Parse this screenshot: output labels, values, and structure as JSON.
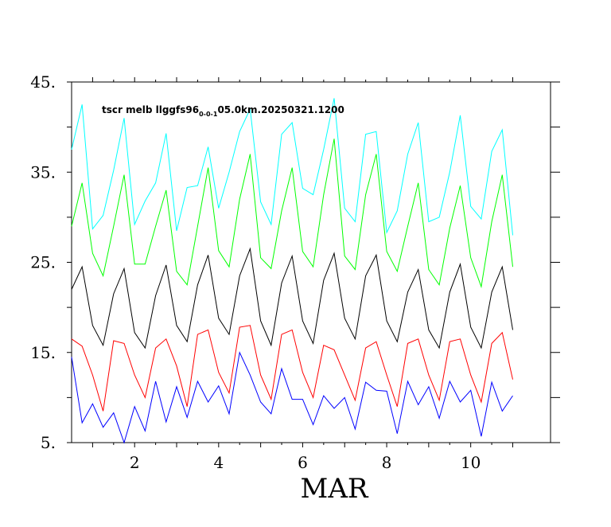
{
  "chart_data": {
    "type": "line",
    "title_parts": {
      "pre": "tscr melb llggfs96",
      "sub": "0-0-1",
      "post": "05.0km.20250321.1200"
    },
    "xlabel": "MAR",
    "ylabel": "",
    "xlim": [
      0.5,
      11.9
    ],
    "ylim": [
      5,
      45
    ],
    "x_ticks": [
      2,
      4,
      6,
      8,
      10
    ],
    "y_ticks": [
      "5.",
      "15.",
      "25.",
      "35.",
      "45."
    ],
    "y_tick_values": [
      5,
      15,
      25,
      35,
      45
    ],
    "grid": false,
    "x": [
      0.5,
      0.75,
      1.0,
      1.25,
      1.5,
      1.75,
      2.0,
      2.25,
      2.5,
      2.75,
      3.0,
      3.25,
      3.5,
      3.75,
      4.0,
      4.25,
      4.5,
      4.75,
      5.0,
      5.25,
      5.5,
      5.75,
      6.0,
      6.25,
      6.5,
      6.75,
      7.0,
      7.25,
      7.5,
      7.75,
      8.0,
      8.25,
      8.5,
      8.75,
      9.0,
      9.25,
      9.5,
      9.75,
      10.0,
      10.25,
      10.5,
      10.75,
      11.0,
      11.25,
      11.5
    ],
    "series": [
      {
        "color": "#00ffff",
        "values": [
          37.5,
          42.5,
          28.7,
          30.2,
          35.2,
          41.0,
          29.2,
          31.8,
          33.8,
          39.3,
          28.5,
          33.3,
          33.5,
          37.8,
          31.0,
          35.0,
          39.5,
          42.0,
          31.7,
          29.2,
          39.2,
          40.5,
          33.2,
          32.5,
          37.5,
          43.2,
          31.0,
          29.5,
          39.2,
          39.5,
          28.3,
          30.7,
          37.0,
          40.5,
          29.5,
          30.0,
          35.0,
          41.3,
          31.2,
          29.8,
          37.3,
          39.7,
          28.0,
          null,
          null
        ]
      },
      {
        "color": "#00ff00",
        "values": [
          29.0,
          33.8,
          26.0,
          23.5,
          29.0,
          34.7,
          24.8,
          24.8,
          29.0,
          33.0,
          24.0,
          22.5,
          29.0,
          35.5,
          26.3,
          24.5,
          32.0,
          37.0,
          25.5,
          24.3,
          30.7,
          35.5,
          26.2,
          24.5,
          32.5,
          38.7,
          25.7,
          24.2,
          32.5,
          37.0,
          26.2,
          24.0,
          29.0,
          33.8,
          24.2,
          22.5,
          28.8,
          33.5,
          25.5,
          22.3,
          29.5,
          34.7,
          24.5,
          null,
          null
        ]
      },
      {
        "color": "#000000",
        "values": [
          22.0,
          24.5,
          18.0,
          15.8,
          21.5,
          24.3,
          17.2,
          15.5,
          21.3,
          24.7,
          18.0,
          16.2,
          22.5,
          25.8,
          18.8,
          17.0,
          23.5,
          26.5,
          18.5,
          15.8,
          22.7,
          25.7,
          18.5,
          16.0,
          23.0,
          26.0,
          18.8,
          16.5,
          23.5,
          25.8,
          18.5,
          16.2,
          21.7,
          24.2,
          17.5,
          15.5,
          21.7,
          24.8,
          17.8,
          15.5,
          21.7,
          24.5,
          17.5,
          null,
          null
        ]
      },
      {
        "color": "#ff0000",
        "values": [
          16.5,
          15.7,
          12.5,
          8.5,
          16.3,
          16.0,
          12.5,
          10.0,
          15.5,
          16.5,
          13.5,
          9.0,
          17.0,
          17.5,
          12.8,
          10.5,
          17.8,
          18.0,
          12.5,
          9.8,
          17.0,
          17.5,
          12.8,
          10.0,
          15.8,
          15.3,
          12.5,
          9.7,
          15.5,
          16.2,
          12.5,
          9.0,
          16.0,
          16.5,
          12.5,
          9.7,
          16.2,
          16.5,
          12.5,
          9.5,
          16.0,
          17.2,
          12.0,
          null,
          null
        ]
      },
      {
        "color": "#0000ff",
        "values": [
          14.5,
          7.2,
          9.3,
          6.7,
          8.3,
          5.0,
          9.0,
          6.3,
          11.8,
          7.3,
          11.2,
          7.8,
          11.8,
          9.5,
          11.3,
          8.2,
          15.0,
          12.5,
          9.5,
          8.2,
          13.2,
          9.8,
          9.8,
          7.0,
          10.2,
          8.8,
          10.0,
          6.5,
          11.7,
          10.8,
          10.7,
          6.0,
          11.8,
          9.2,
          11.2,
          7.7,
          11.8,
          9.5,
          10.8,
          5.7,
          11.7,
          8.5,
          10.2,
          null,
          null
        ]
      }
    ]
  }
}
